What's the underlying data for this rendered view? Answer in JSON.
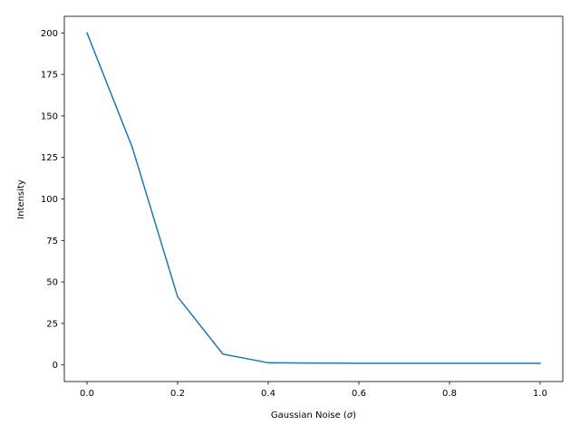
{
  "chart_data": {
    "type": "line",
    "title": "",
    "xlabel": "Gaussian Noise (σ)",
    "xlabel_parts": {
      "prefix": "Gaussian Noise (",
      "symbol": "σ",
      "suffix": ")"
    },
    "ylabel": "Intensity",
    "xlim": [
      -0.05,
      1.05
    ],
    "ylim": [
      -10,
      210
    ],
    "x_ticks": [
      0.0,
      0.2,
      0.4,
      0.6,
      0.8,
      1.0
    ],
    "x_tick_labels": [
      "0.0",
      "0.2",
      "0.4",
      "0.6",
      "0.8",
      "1.0"
    ],
    "y_ticks": [
      0,
      25,
      50,
      75,
      100,
      125,
      150,
      175,
      200
    ],
    "y_tick_labels": [
      "0",
      "25",
      "50",
      "75",
      "100",
      "125",
      "150",
      "175",
      "200"
    ],
    "grid": false,
    "legend": false,
    "series": [
      {
        "color": "#1f77b4",
        "x": [
          0.0,
          0.1,
          0.2,
          0.3,
          0.4,
          0.5,
          0.6,
          0.7,
          0.8,
          0.9,
          1.0
        ],
        "values": [
          200,
          131,
          41,
          6.5,
          1.3,
          1.1,
          1.0,
          1.0,
          1.0,
          1.0,
          1.0
        ]
      }
    ]
  }
}
